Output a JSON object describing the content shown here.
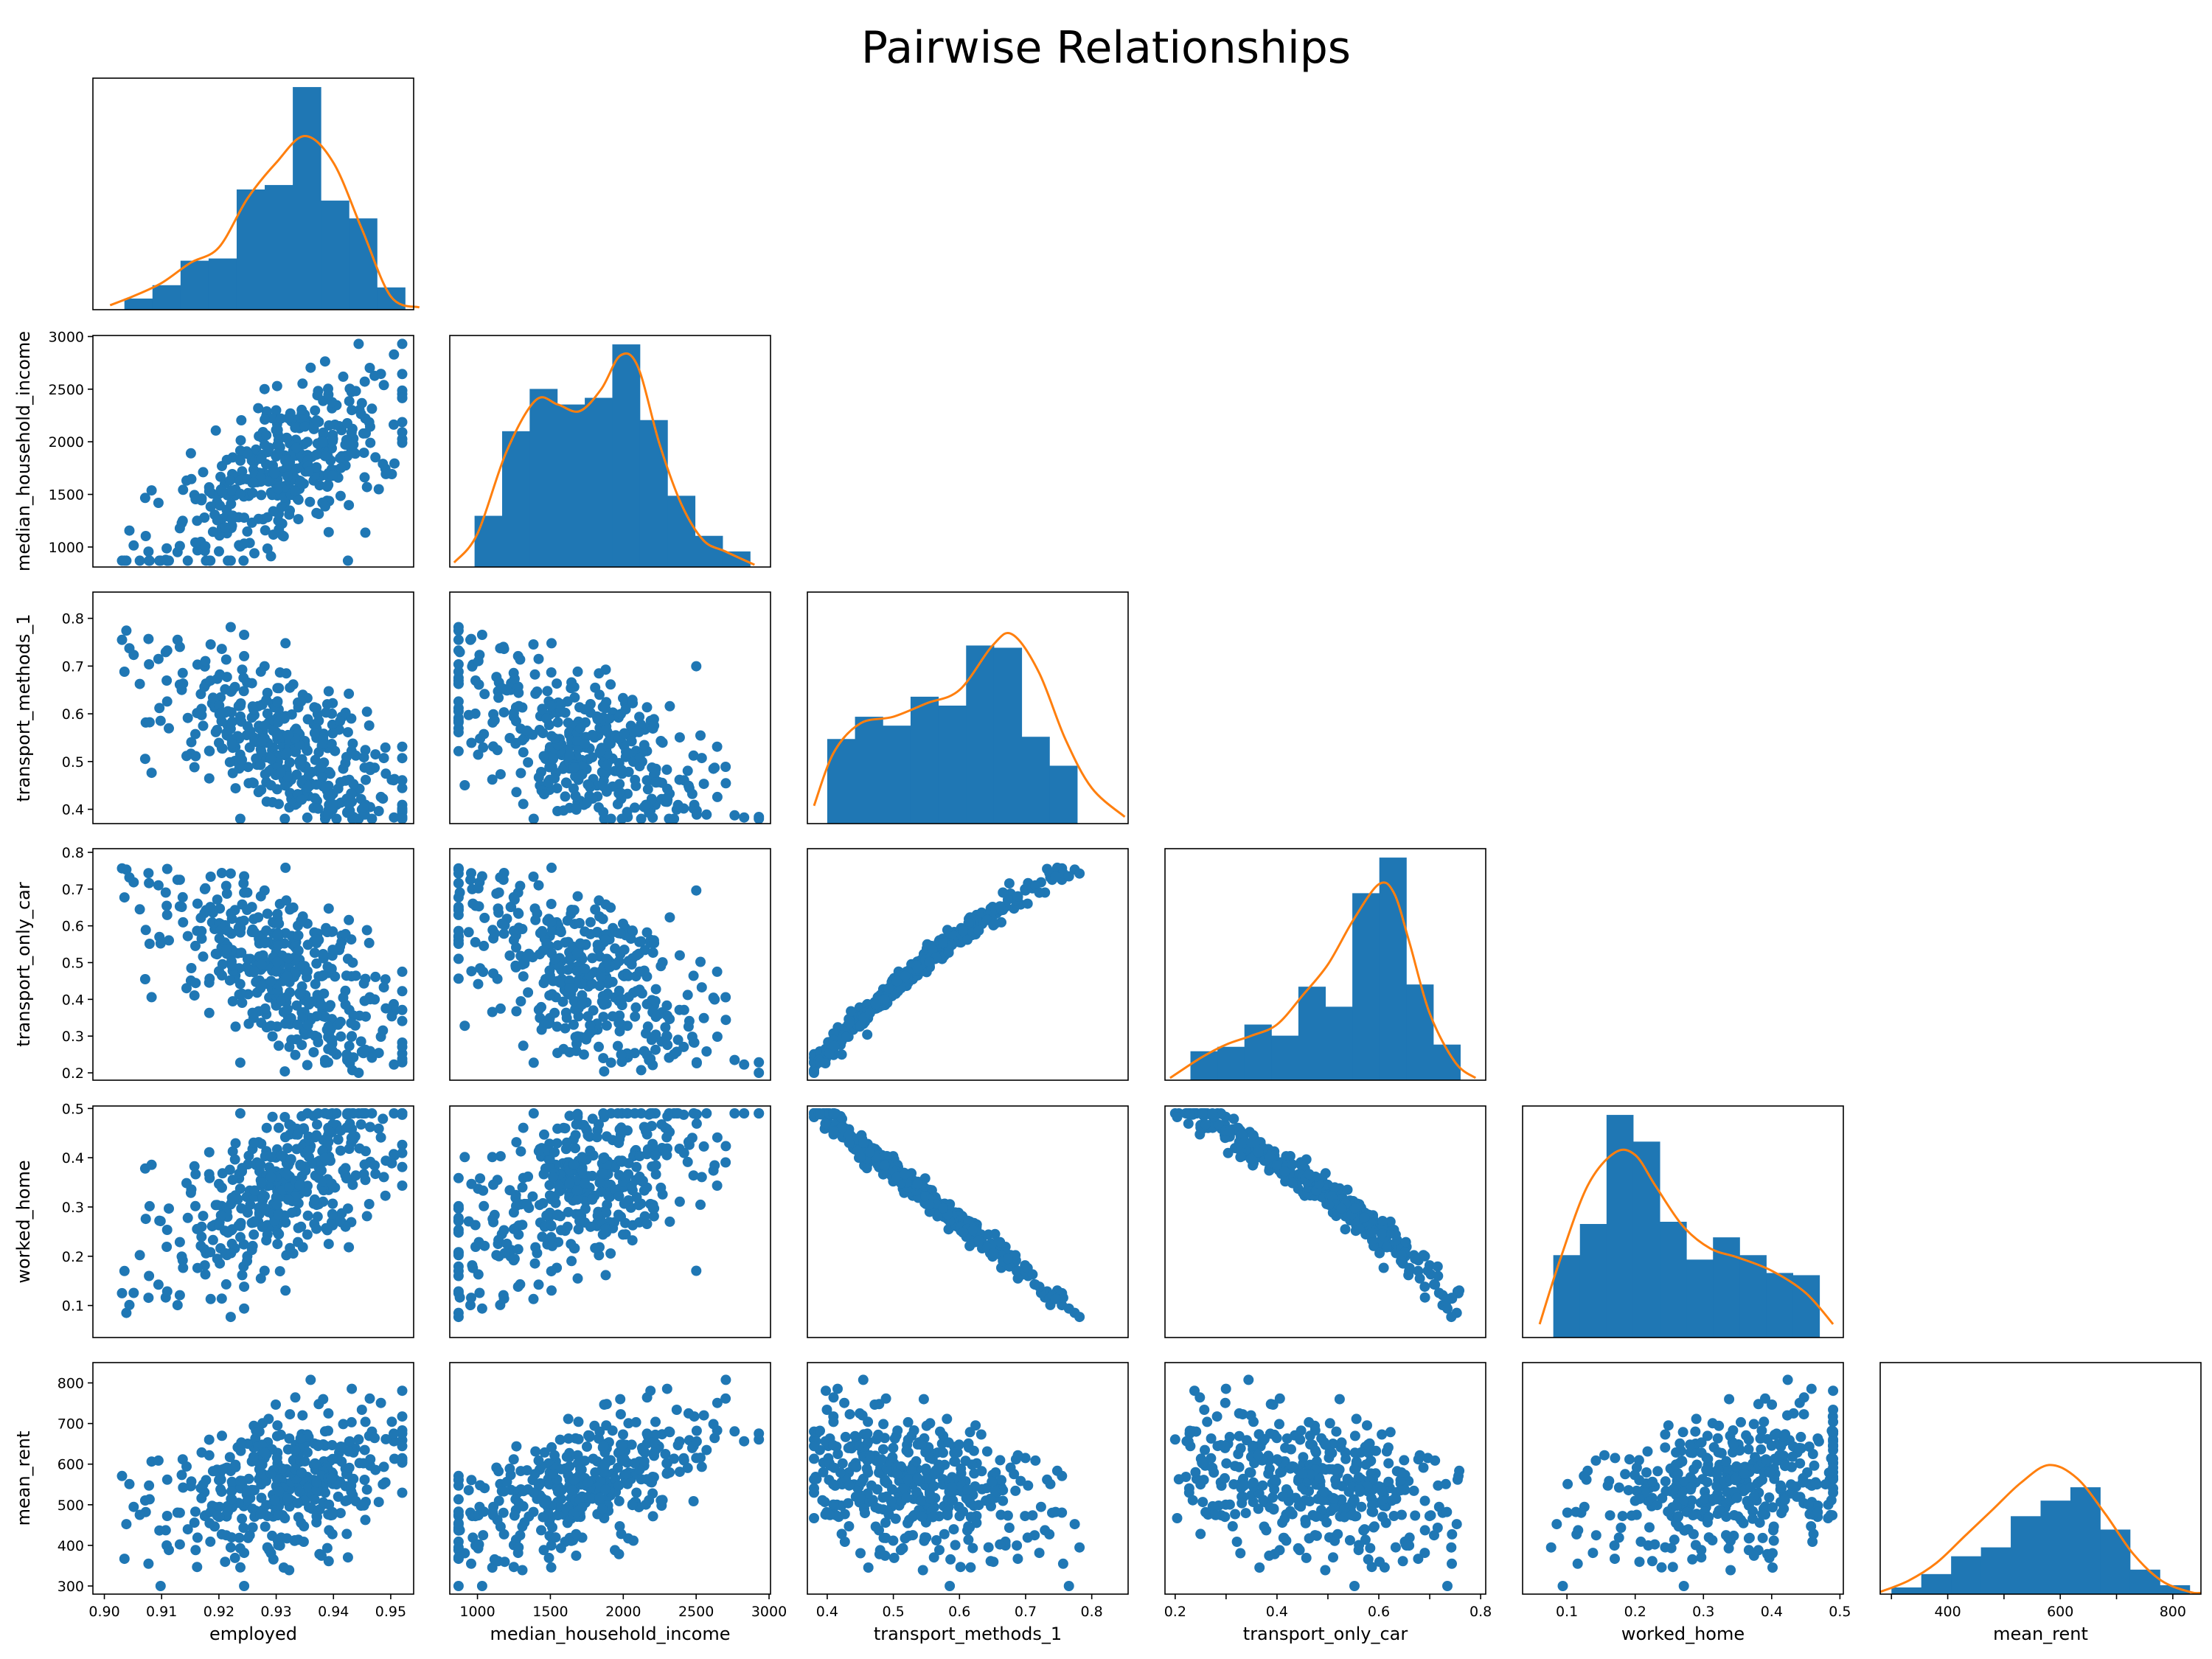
{
  "title": "Pairwise Relationships",
  "colors": {
    "scatter": "#1f77b4",
    "hist": "#1f77b4",
    "kde": "#ff7f0e",
    "axes": "#000000"
  },
  "chart_data": {
    "type": "scatter",
    "layout": "lower-triangular pair plot; histograms with KDE on diagonal",
    "variables": [
      "employed",
      "median_household_income",
      "transport_methods_1",
      "transport_only_car",
      "worked_home",
      "mean_rent"
    ],
    "axes": {
      "employed": {
        "lim": [
          0.898,
          0.954
        ],
        "ticks": [
          0.9,
          0.91,
          0.92,
          0.93,
          0.94,
          0.95
        ],
        "tick_labels": [
          "0.90",
          "0.91",
          "0.92",
          "0.93",
          "0.94",
          "0.95"
        ]
      },
      "median_household_income": {
        "lim": [
          810,
          3010
        ],
        "ticks": [
          1000,
          1500,
          2000,
          2500,
          3000
        ],
        "tick_labels": [
          "1000",
          "1500",
          "2000",
          "2500",
          "3000"
        ]
      },
      "transport_methods_1": {
        "lim": [
          0.37,
          0.855
        ],
        "ticks": [
          0.4,
          0.5,
          0.6,
          0.7,
          0.8
        ],
        "tick_labels": [
          "0.4",
          "0.5",
          "0.6",
          "0.7",
          "0.8"
        ]
      },
      "transport_only_car": {
        "lim": [
          0.18,
          0.81
        ],
        "ticks": [
          0.2,
          0.3,
          0.4,
          0.5,
          0.6,
          0.7,
          0.8
        ],
        "tick_labels": [
          "0.2",
          "0.3",
          "0.4",
          "0.5",
          "0.6",
          "0.7",
          "0.8"
        ],
        "tick_labels_x": [
          "0.2",
          "",
          "0.4",
          "",
          "0.6",
          "",
          "0.8"
        ]
      },
      "worked_home": {
        "lim": [
          0.035,
          0.505
        ],
        "ticks": [
          0.1,
          0.2,
          0.3,
          0.4,
          0.5
        ],
        "tick_labels": [
          "0.1",
          "0.2",
          "0.3",
          "0.4",
          "0.5"
        ]
      },
      "mean_rent": {
        "lim": [
          280,
          850
        ],
        "ticks": [
          300,
          400,
          500,
          600,
          700,
          800
        ],
        "tick_labels": [
          "300",
          "400",
          "500",
          "600",
          "700",
          "800"
        ],
        "tick_labels_x": [
          "",
          "400",
          "",
          "600",
          "",
          "800"
        ]
      }
    },
    "histograms": {
      "employed": {
        "edges": [
          0.9035,
          0.9084,
          0.9133,
          0.9182,
          0.9231,
          0.928,
          0.9329,
          0.9378,
          0.9427,
          0.9476,
          0.9525
        ],
        "counts": [
          0.05,
          0.11,
          0.22,
          0.23,
          0.54,
          0.56,
          1.0,
          0.49,
          0.41,
          0.1
        ],
        "kde_x": [
          0.901,
          0.905,
          0.91,
          0.915,
          0.92,
          0.925,
          0.93,
          0.935,
          0.94,
          0.945,
          0.95,
          0.955
        ],
        "kde_y": [
          0.02,
          0.06,
          0.12,
          0.21,
          0.28,
          0.5,
          0.66,
          0.78,
          0.66,
          0.36,
          0.06,
          0.01
        ]
      },
      "median_household_income": {
        "edges": [
          980,
          1169,
          1358,
          1547,
          1736,
          1925,
          2114,
          2303,
          2492,
          2681,
          2870
        ],
        "counts": [
          0.23,
          0.61,
          0.8,
          0.73,
          0.76,
          1.0,
          0.66,
          0.32,
          0.14,
          0.07
        ],
        "kde_x": [
          840,
          1000,
          1200,
          1400,
          1550,
          1700,
          1850,
          1980,
          2100,
          2250,
          2400,
          2550,
          2700,
          2900
        ],
        "kde_y": [
          0.02,
          0.15,
          0.52,
          0.75,
          0.73,
          0.7,
          0.8,
          0.95,
          0.9,
          0.55,
          0.28,
          0.12,
          0.07,
          0.01
        ]
      },
      "transport_methods_1": {
        "edges": [
          0.4,
          0.442,
          0.484,
          0.526,
          0.568,
          0.61,
          0.652,
          0.694,
          0.736,
          0.778,
          0.82
        ],
        "counts": [
          0.38,
          0.48,
          0.44,
          0.57,
          0.53,
          0.8,
          0.79,
          0.39,
          0.26,
          0.0
        ],
        "kde_x": [
          0.38,
          0.41,
          0.45,
          0.5,
          0.55,
          0.6,
          0.65,
          0.68,
          0.72,
          0.76,
          0.8,
          0.85
        ],
        "kde_y": [
          0.08,
          0.32,
          0.45,
          0.48,
          0.54,
          0.6,
          0.8,
          0.85,
          0.68,
          0.38,
          0.16,
          0.03
        ]
      },
      "transport_only_car": {
        "edges": [
          0.23,
          0.283,
          0.336,
          0.389,
          0.442,
          0.495,
          0.548,
          0.601,
          0.654,
          0.707,
          0.76
        ],
        "counts": [
          0.13,
          0.15,
          0.25,
          0.2,
          0.42,
          0.33,
          0.84,
          1.0,
          0.43,
          0.16
        ],
        "kde_x": [
          0.19,
          0.25,
          0.3,
          0.35,
          0.4,
          0.45,
          0.5,
          0.55,
          0.6,
          0.63,
          0.66,
          0.7,
          0.75,
          0.79
        ],
        "kde_y": [
          0.01,
          0.1,
          0.16,
          0.2,
          0.25,
          0.38,
          0.52,
          0.72,
          0.88,
          0.84,
          0.62,
          0.3,
          0.08,
          0.01
        ]
      },
      "worked_home": {
        "edges": [
          0.08,
          0.119,
          0.158,
          0.197,
          0.236,
          0.275,
          0.314,
          0.353,
          0.392,
          0.431,
          0.47
        ],
        "counts": [
          0.37,
          0.51,
          1.0,
          0.88,
          0.52,
          0.35,
          0.45,
          0.37,
          0.29,
          0.28
        ],
        "kde_x": [
          0.06,
          0.09,
          0.13,
          0.17,
          0.2,
          0.23,
          0.27,
          0.31,
          0.35,
          0.4,
          0.45,
          0.49
        ],
        "kde_y": [
          0.06,
          0.35,
          0.68,
          0.83,
          0.82,
          0.68,
          0.5,
          0.4,
          0.36,
          0.3,
          0.2,
          0.06
        ]
      },
      "mean_rent": {
        "edges": [
          300,
          353,
          406,
          459,
          512,
          565,
          618,
          671,
          724,
          777,
          830
        ],
        "counts": [
          0.03,
          0.09,
          0.17,
          0.21,
          0.35,
          0.42,
          0.48,
          0.29,
          0.11,
          0.04
        ],
        "kde_x": [
          280,
          330,
          380,
          430,
          480,
          530,
          580,
          630,
          680,
          730,
          780,
          830,
          850
        ],
        "kde_y": [
          0.01,
          0.06,
          0.14,
          0.26,
          0.38,
          0.5,
          0.58,
          0.52,
          0.36,
          0.18,
          0.06,
          0.01,
          0.005
        ]
      }
    },
    "n_points": 400,
    "point_color": "#1f77b4"
  }
}
